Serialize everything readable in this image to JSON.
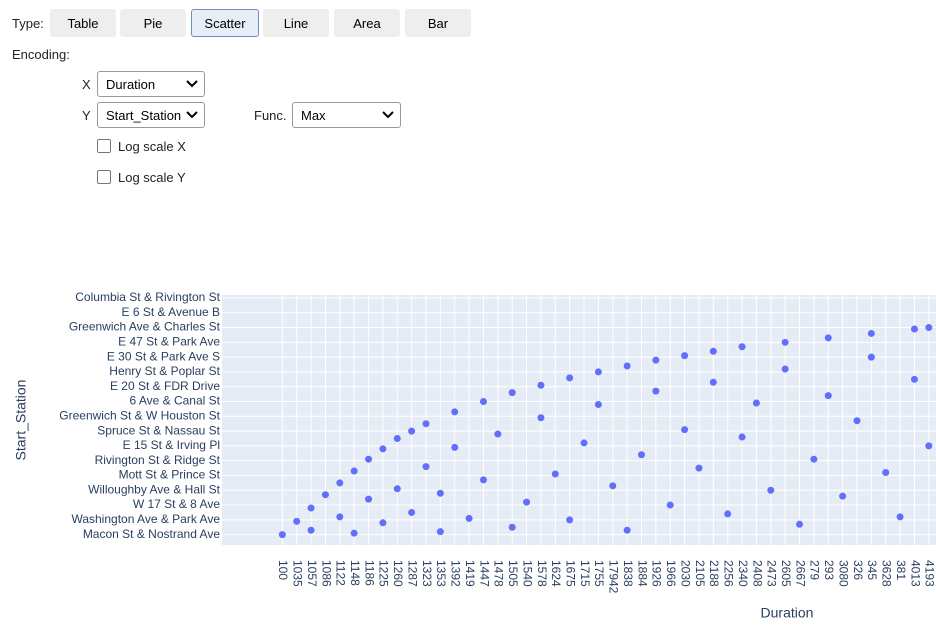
{
  "controls": {
    "type_label": "Type:",
    "tabs": [
      "Table",
      "Pie",
      "Scatter",
      "Line",
      "Area",
      "Bar"
    ],
    "active_tab": 2,
    "encoding_label": "Encoding:",
    "x_label": "X",
    "x_value": "Duration",
    "y_label": "Y",
    "y_value": "Start_Station",
    "func_label": "Func.",
    "func_value": "Max",
    "log_x": "Log scale X",
    "log_y": "Log scale Y"
  },
  "chart_data": {
    "type": "scatter",
    "x_title": "Duration",
    "y_title": "Start_Station",
    "color": "#636efa",
    "grid": true,
    "xlim": [
      -4.2,
      45.5
    ],
    "ylim": [
      -0.7,
      16.2
    ],
    "xticks": [
      {
        "value": 0,
        "label": "100"
      },
      {
        "value": 1,
        "label": "1035"
      },
      {
        "value": 2,
        "label": "1057"
      },
      {
        "value": 3,
        "label": "1086"
      },
      {
        "value": 4,
        "label": "1122"
      },
      {
        "value": 5,
        "label": "1148"
      },
      {
        "value": 6,
        "label": "1186"
      },
      {
        "value": 7,
        "label": "1225"
      },
      {
        "value": 8,
        "label": "1260"
      },
      {
        "value": 9,
        "label": "1287"
      },
      {
        "value": 10,
        "label": "1323"
      },
      {
        "value": 11,
        "label": "1353"
      },
      {
        "value": 12,
        "label": "1392"
      },
      {
        "value": 13,
        "label": "1419"
      },
      {
        "value": 14,
        "label": "1447"
      },
      {
        "value": 15,
        "label": "1478"
      },
      {
        "value": 16,
        "label": "1505"
      },
      {
        "value": 17,
        "label": "1540"
      },
      {
        "value": 18,
        "label": "1578"
      },
      {
        "value": 19,
        "label": "1624"
      },
      {
        "value": 20,
        "label": "1675"
      },
      {
        "value": 21,
        "label": "1715"
      },
      {
        "value": 22,
        "label": "1755"
      },
      {
        "value": 23,
        "label": "17942"
      },
      {
        "value": 24,
        "label": "1838"
      },
      {
        "value": 25,
        "label": "1884"
      },
      {
        "value": 26,
        "label": "1926"
      },
      {
        "value": 27,
        "label": "1966"
      },
      {
        "value": 28,
        "label": "2030"
      },
      {
        "value": 29,
        "label": "2105"
      },
      {
        "value": 30,
        "label": "2188"
      },
      {
        "value": 31,
        "label": "2256"
      },
      {
        "value": 32,
        "label": "2340"
      },
      {
        "value": 33,
        "label": "2408"
      },
      {
        "value": 34,
        "label": "2473"
      },
      {
        "value": 35,
        "label": "2605"
      },
      {
        "value": 36,
        "label": "2667"
      },
      {
        "value": 37,
        "label": "279"
      },
      {
        "value": 38,
        "label": "293"
      },
      {
        "value": 39,
        "label": "3080"
      },
      {
        "value": 40,
        "label": "326"
      },
      {
        "value": 41,
        "label": "345"
      },
      {
        "value": 42,
        "label": "3628"
      },
      {
        "value": 43,
        "label": "381"
      },
      {
        "value": 44,
        "label": "4013"
      },
      {
        "value": 45,
        "label": "4193"
      }
    ],
    "yticks": [
      {
        "value": 0,
        "label": "Macon St & Nostrand Ave"
      },
      {
        "value": 1,
        "label": "Washington Ave & Park Ave"
      },
      {
        "value": 2,
        "label": "W 17 St & 8 Ave"
      },
      {
        "value": 3,
        "label": "Willoughby Ave & Hall St"
      },
      {
        "value": 4,
        "label": "Mott St & Prince St"
      },
      {
        "value": 5,
        "label": "Rivington St & Ridge St"
      },
      {
        "value": 6,
        "label": "E 15 St & Irving Pl"
      },
      {
        "value": 7,
        "label": "Spruce St & Nassau St"
      },
      {
        "value": 8,
        "label": "Greenwich St & W Houston St"
      },
      {
        "value": 9,
        "label": "6 Ave & Canal St"
      },
      {
        "value": 10,
        "label": "E 20 St & FDR Drive"
      },
      {
        "value": 11,
        "label": "Henry St & Poplar St"
      },
      {
        "value": 12,
        "label": "E 30 St & Park Ave S"
      },
      {
        "value": 13,
        "label": "E 47 St & Park Ave"
      },
      {
        "value": 14,
        "label": "Greenwich Ave & Charles St"
      },
      {
        "value": 15,
        "label": "E 6 St & Avenue B"
      },
      {
        "value": 16,
        "label": "Columbia St & Rivington St"
      }
    ],
    "x": [
      0,
      1,
      2,
      3,
      4,
      5,
      6,
      7,
      8,
      9,
      10,
      12,
      14,
      16,
      18,
      20,
      22,
      24,
      26,
      28,
      30,
      32,
      35,
      38,
      41,
      44,
      45,
      2,
      4,
      5,
      6,
      7,
      8,
      9,
      10,
      11,
      11,
      12,
      13,
      14,
      15,
      16,
      17,
      18,
      19,
      20,
      21,
      22,
      23,
      24,
      25,
      26,
      27,
      28,
      29,
      30,
      31,
      32,
      33,
      34,
      35,
      36,
      37,
      38,
      39,
      40,
      41,
      42,
      43,
      44,
      45
    ],
    "y": [
      0,
      0.9,
      1.8,
      2.7,
      3.5,
      4.3,
      5.1,
      5.8,
      6.5,
      7.0,
      7.5,
      8.3,
      9.0,
      9.6,
      10.1,
      10.6,
      11.0,
      11.4,
      11.8,
      12.1,
      12.4,
      12.7,
      13.0,
      13.3,
      13.6,
      13.9,
      14.0,
      0.3,
      1.2,
      0.1,
      2.4,
      0.8,
      3.1,
      1.5,
      4.6,
      0.2,
      2.8,
      5.9,
      1.1,
      3.7,
      6.8,
      0.5,
      2.2,
      7.9,
      4.1,
      1.0,
      6.2,
      8.8,
      3.3,
      0.3,
      5.4,
      9.7,
      2.0,
      7.1,
      4.5,
      10.3,
      1.4,
      6.6,
      8.9,
      3.0,
      11.2,
      0.7,
      5.1,
      9.4,
      2.6,
      7.7,
      12.0,
      4.2,
      1.2,
      10.5,
      6.0
    ]
  }
}
